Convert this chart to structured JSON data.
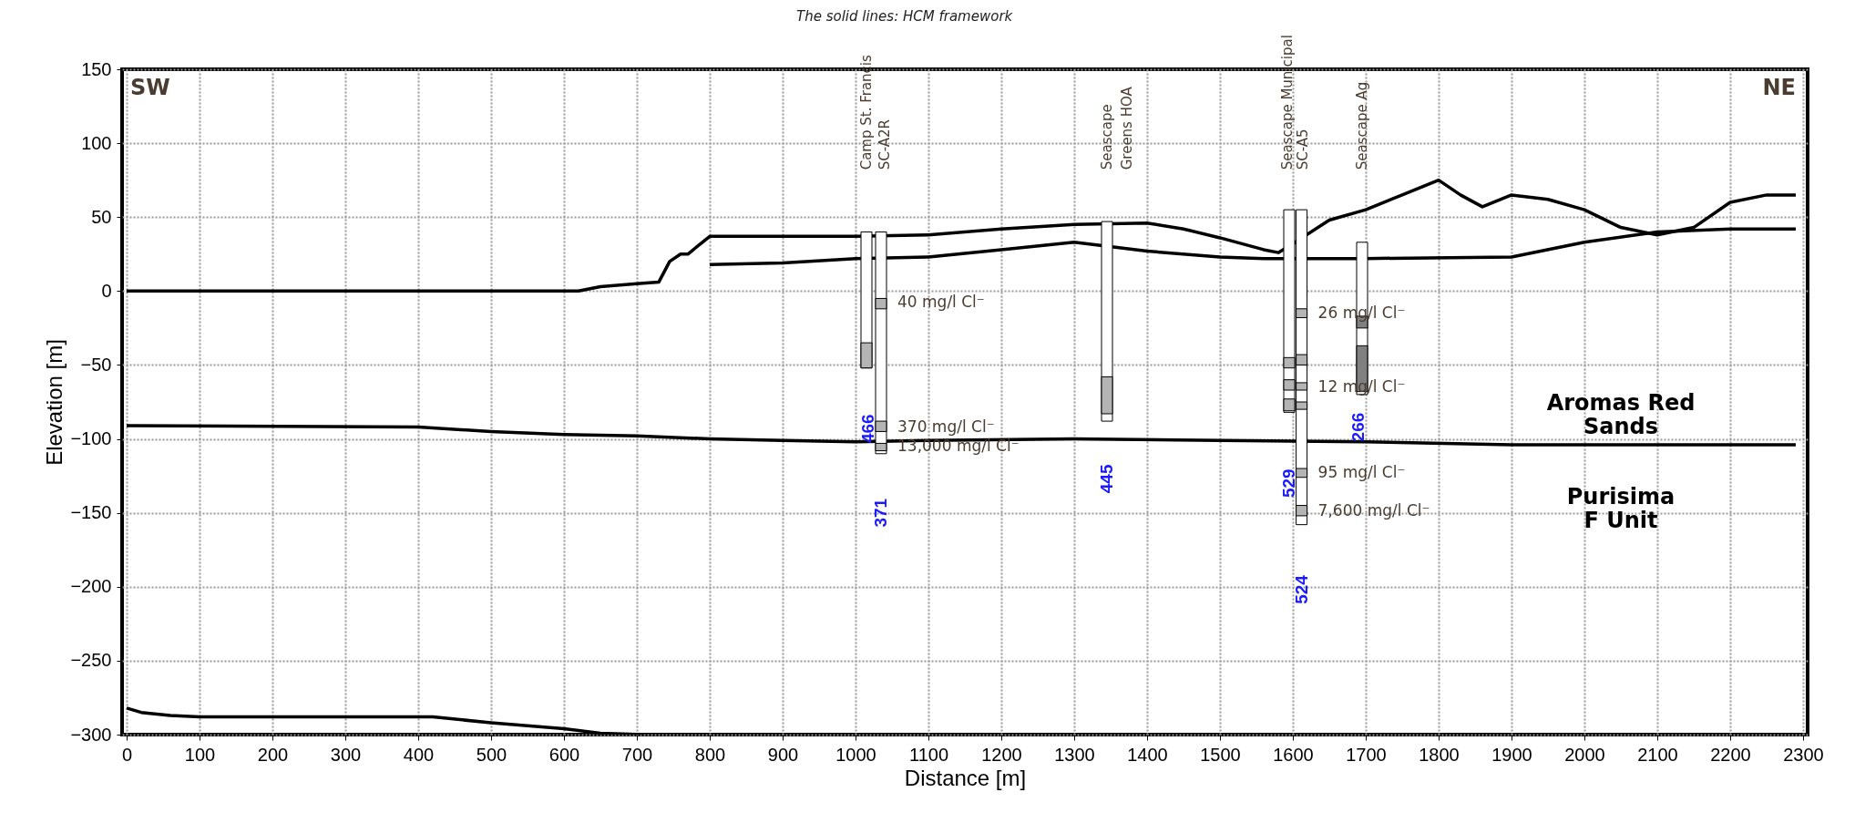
{
  "chart_data": {
    "type": "line",
    "title": "The solid lines: HCM framework",
    "xlabel": "Distance [m]",
    "ylabel": "Elevation [m]",
    "xlim": [
      0,
      2300
    ],
    "xticks": [
      0,
      100,
      200,
      300,
      400,
      500,
      600,
      700,
      800,
      900,
      1000,
      1100,
      1200,
      1300,
      1400,
      1500,
      1600,
      1700,
      1800,
      1900,
      2000,
      2100,
      2200,
      2300
    ],
    "ylim": [
      -300,
      150
    ],
    "yticks": [
      -300,
      -250,
      -200,
      -150,
      -100,
      -50,
      0,
      50,
      100,
      150
    ],
    "grid": true,
    "line_style": "solid",
    "marker": "none",
    "series": [
      {
        "color": "#000000",
        "x": [
          0,
          620,
          650,
          700,
          730,
          745,
          760,
          770,
          800,
          1000,
          1100,
          1200,
          1300,
          1400,
          1450,
          1500,
          1560,
          1580,
          1600,
          1650,
          1700,
          1750,
          1800,
          1830,
          1860,
          1900,
          1950,
          2000,
          2050,
          2080,
          2100,
          2150,
          2200,
          2250,
          2290
        ],
        "values": [
          0,
          0,
          3,
          5,
          6,
          20,
          25,
          25,
          37,
          37,
          38,
          42,
          45,
          46,
          42,
          36,
          28,
          26,
          32,
          48,
          55,
          65,
          75,
          65,
          57,
          65,
          62,
          55,
          43,
          40,
          38,
          43,
          60,
          65,
          65
        ]
      },
      {
        "color": "#000000",
        "x": [
          800,
          900,
          1000,
          1100,
          1200,
          1300,
          1400,
          1500,
          1560,
          1700,
          1900,
          2000,
          2100,
          2200,
          2290
        ],
        "values": [
          18,
          19,
          22,
          23,
          28,
          33,
          27,
          23,
          22,
          22,
          23,
          33,
          40,
          42,
          42
        ]
      },
      {
        "color": "#000000",
        "x": [
          0,
          400,
          500,
          600,
          700,
          800,
          900,
          1000,
          1100,
          1300,
          1500,
          1700,
          1900,
          2290
        ],
        "values": [
          -91,
          -92,
          -95,
          -97,
          -98,
          -100,
          -101,
          -102,
          -101,
          -100,
          -101,
          -102,
          -104,
          -104
        ]
      },
      {
        "color": "#000000",
        "x": [
          0,
          20,
          60,
          100,
          420,
          500,
          600,
          650,
          710
        ],
        "values": [
          -282,
          -285,
          -287,
          -288,
          -288,
          -292,
          -296,
          -299,
          -300
        ]
      },
      {
        "type": "bar",
        "color": "#ffffff",
        "x": [
          1015,
          1035,
          1345,
          1595,
          1612,
          1695
        ],
        "base": [
          -52,
          -110,
          -88,
          -82,
          -158,
          -70
        ],
        "values": [
          92,
          150,
          135,
          137,
          213,
          103
        ]
      },
      {
        "type": "bar",
        "color": "#b4b4b4",
        "x": [
          1015,
          1035,
          1345,
          1595,
          1612
        ],
        "base": [
          -52,
          -12,
          -83,
          -52,
          -18
        ],
        "values": [
          17,
          7,
          25,
          7,
          6
        ]
      },
      {
        "type": "bar",
        "color": "#b4b4b4",
        "x": [
          1035,
          1595,
          1612
        ],
        "base": [
          -95,
          -67,
          -50
        ],
        "values": [
          7,
          7,
          7
        ]
      },
      {
        "type": "bar",
        "color": "#b4b4b4",
        "x": [
          1035,
          1595,
          1612
        ],
        "base": [
          -108,
          -81,
          -67
        ],
        "values": [
          5,
          8,
          5
        ]
      },
      {
        "type": "bar",
        "color": "#b4b4b4",
        "x": [
          1612
        ],
        "base": [
          -80
        ],
        "values": [
          5
        ]
      },
      {
        "type": "bar",
        "color": "#b4b4b4",
        "x": [
          1612
        ],
        "base": [
          -126
        ],
        "values": [
          6
        ]
      },
      {
        "type": "bar",
        "color": "#b4b4b4",
        "x": [
          1612
        ],
        "base": [
          -152
        ],
        "values": [
          7
        ]
      },
      {
        "type": "bar",
        "color": "#808080",
        "x": [
          1695
        ],
        "base": [
          -25
        ],
        "values": [
          8
        ]
      },
      {
        "type": "bar",
        "color": "#808080",
        "x": [
          1695
        ],
        "base": [
          -68
        ],
        "values": [
          31
        ]
      }
    ],
    "annotations": [
      "Camp St. Francis",
      "SC-A2R",
      "Seascape\nGreens HOA",
      "Seascape Municipal",
      "SC-A5",
      "Seascape Ag",
      "466",
      "371",
      "445",
      "529",
      "524",
      "266",
      "40 mg/l Cl⁻",
      "370 mg/l Cl⁻",
      "13,000 mg/l Cl⁻",
      "26 mg/l Cl⁻",
      "12 mg/l Cl⁻",
      "95 mg/l Cl⁻",
      "7,600 mg/l Cl⁻",
      "Aromas Red\nSands",
      "Purisima\nF Unit",
      "SW",
      "NE"
    ]
  }
}
